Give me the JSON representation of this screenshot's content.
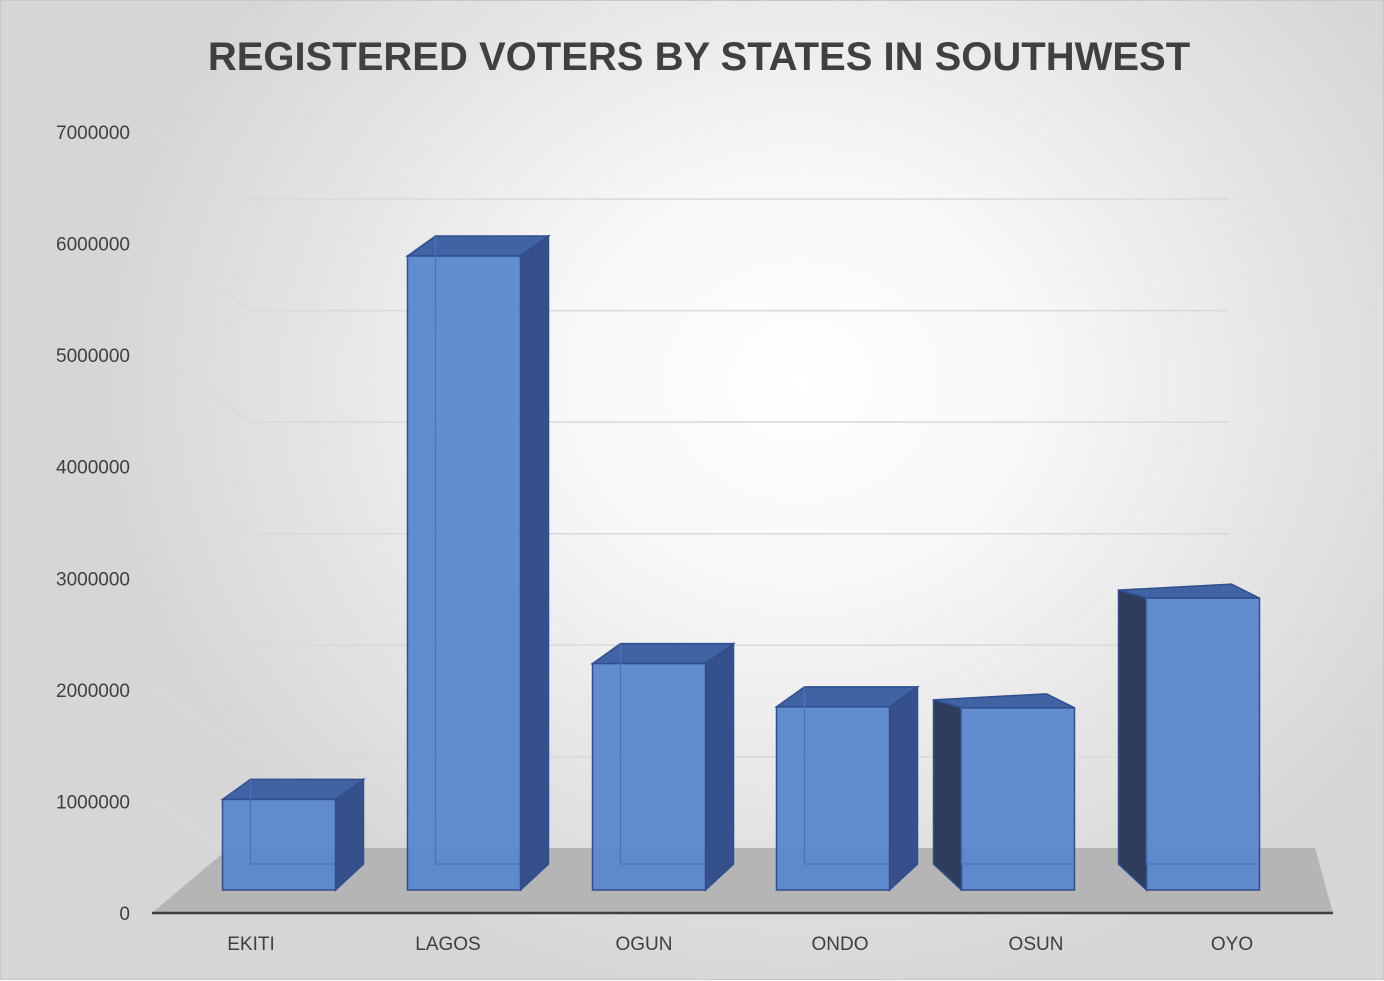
{
  "chart_data": {
    "type": "bar",
    "title": "REGISTERED VOTERS BY STATES IN SOUTHWEST",
    "xlabel": "",
    "ylabel": "",
    "categories": [
      "EKITI",
      "LAGOS",
      "OGUN",
      "ONDO",
      "OSUN",
      "OYO"
    ],
    "values": [
      900000,
      6300000,
      2250000,
      1820000,
      1810000,
      2900000
    ],
    "ylim": [
      0,
      7000000
    ],
    "yticks": [
      "0",
      "1000000",
      "2000000",
      "3000000",
      "4000000",
      "5000000",
      "6000000",
      "7000000"
    ],
    "grid": true,
    "legend": "none",
    "style": "3d-column"
  },
  "colors": {
    "bar_front": "#5b87cf",
    "bar_top": "#3f63a3",
    "bar_side": "#35508a",
    "bar_edge": "#2f4f8f",
    "floor": "#b5b5b5",
    "gridline": "#d9d9d9",
    "axis": "#404040",
    "text": "#404040"
  }
}
